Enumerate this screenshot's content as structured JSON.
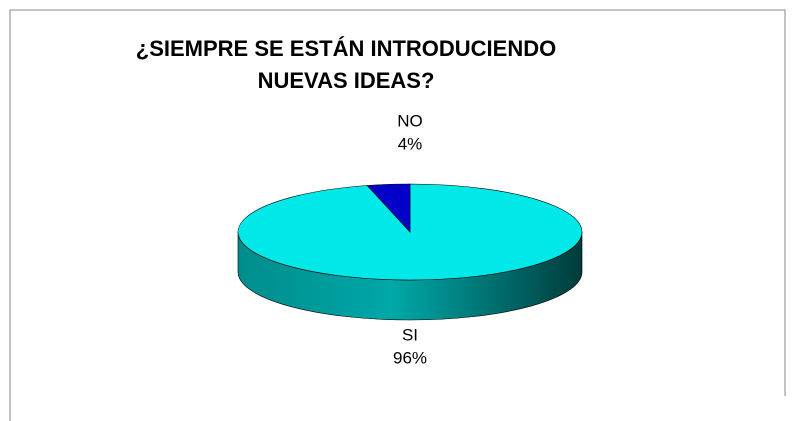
{
  "chart_data": {
    "type": "pie",
    "title": [
      "¿SIEMPRE SE ESTÁN INTRODUCIENDO",
      "NUEVAS IDEAS?"
    ],
    "categories": [
      "SI",
      "NO"
    ],
    "values": [
      96,
      4
    ],
    "value_labels": [
      "96%",
      "4%"
    ],
    "colors": [
      "#00e8e8",
      "#0000c8"
    ]
  }
}
